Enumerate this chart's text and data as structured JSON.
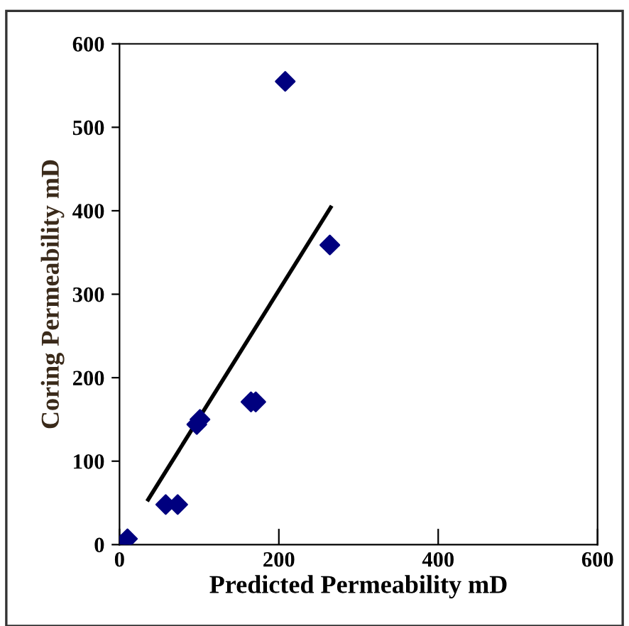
{
  "chart_data": {
    "type": "scatter",
    "xlabel": "Predicted Permeability mD",
    "ylabel": "Coring Permeability mD",
    "series": [
      {
        "color": "#00007f",
        "marker": "diamond",
        "x": [
          2,
          10,
          58,
          73,
          97,
          101,
          165,
          171,
          208,
          264
        ],
        "values": [
          0,
          7,
          48,
          48,
          144,
          150,
          171,
          171,
          555,
          359
        ]
      },
      {
        "type": "line",
        "color": "#000000",
        "marker": "none",
        "line_style": "solid",
        "x": [
          36,
          265
        ],
        "values": [
          54,
          404
        ]
      }
    ],
    "xlim": [
      0,
      600
    ],
    "ylim": [
      0,
      600
    ],
    "xticks": [
      0,
      200,
      400,
      600
    ],
    "yticks": [
      0,
      100,
      200,
      300,
      400,
      500,
      600
    ],
    "grid": false,
    "legend": false
  }
}
